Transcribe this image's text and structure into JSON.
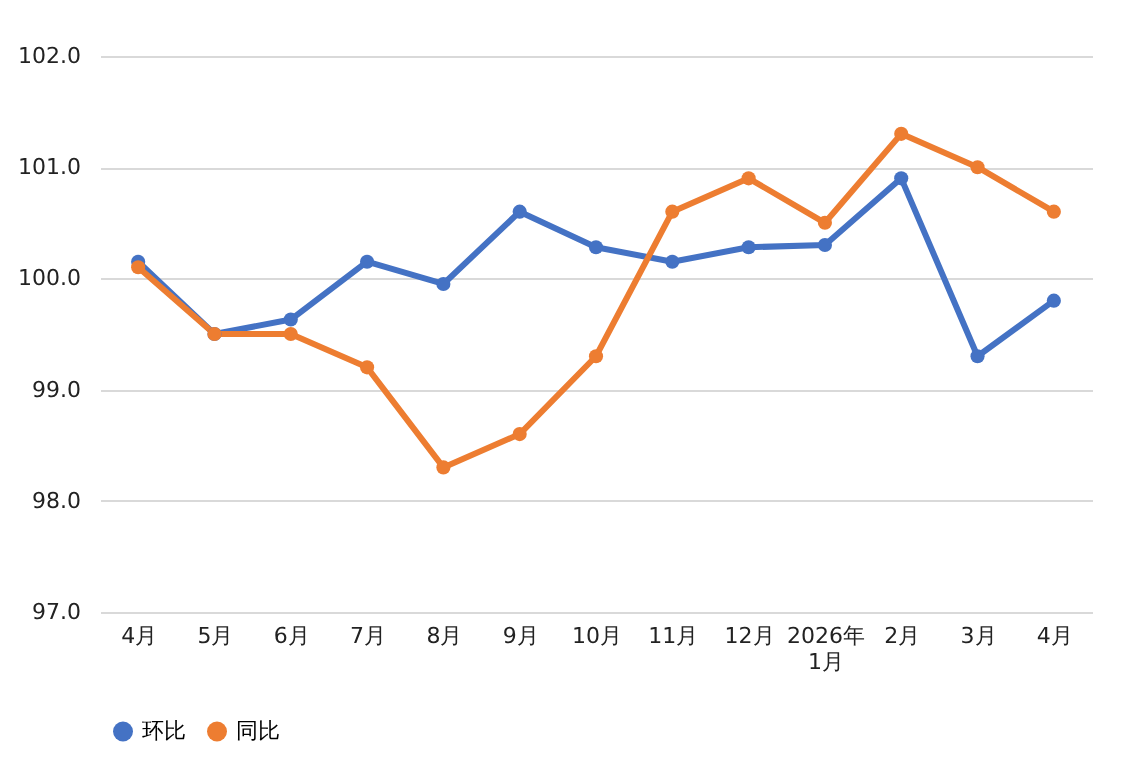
{
  "chart_data": {
    "type": "line",
    "categories": [
      "4月",
      "5月",
      "6月",
      "7月",
      "8月",
      "9月",
      "10月",
      "11月",
      "12月",
      "2026年\n1月",
      "2月",
      "3月",
      "4月"
    ],
    "series": [
      {
        "name": "环比",
        "color": "#4472c4",
        "values": [
          100.15,
          99.5,
          99.63,
          100.15,
          99.95,
          100.6,
          100.28,
          100.15,
          100.28,
          100.3,
          100.9,
          99.3,
          99.8
        ]
      },
      {
        "name": "同比",
        "color": "#ed7d31",
        "values": [
          100.1,
          99.5,
          99.5,
          99.2,
          98.3,
          98.6,
          99.3,
          100.6,
          100.9,
          100.5,
          101.3,
          101.0,
          100.6
        ]
      }
    ],
    "ylim": [
      97,
      102
    ],
    "yticks": [
      {
        "value": 97,
        "label": "97.0"
      },
      {
        "value": 98,
        "label": "98.0"
      },
      {
        "value": 99,
        "label": "99.0"
      },
      {
        "value": 100,
        "label": "100.0"
      },
      {
        "value": 101,
        "label": "101.0"
      },
      {
        "value": 102,
        "label": "102.0"
      }
    ],
    "grid": "y",
    "legend": "bottom",
    "marker": "circle",
    "line_style": "solid"
  }
}
